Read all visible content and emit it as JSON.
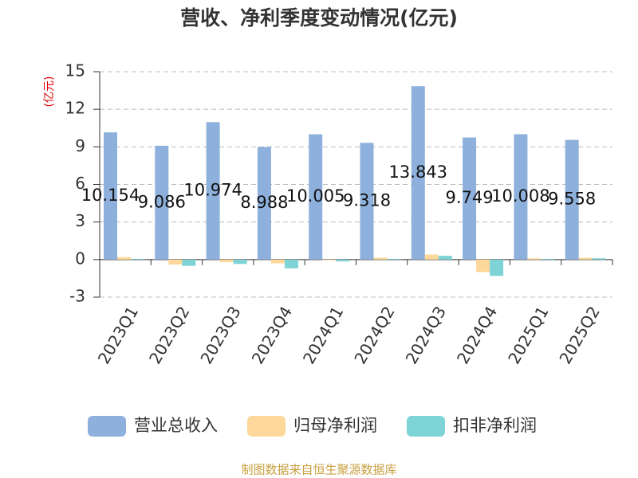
{
  "chart_data": {
    "type": "bar",
    "title": "营收、净利季度变动情况(亿元)",
    "y_unit": "(亿元)",
    "categories": [
      "2023Q1",
      "2023Q2",
      "2023Q3",
      "2023Q4",
      "2024Q1",
      "2024Q2",
      "2024Q3",
      "2024Q4",
      "2025Q1",
      "2025Q2"
    ],
    "series": [
      {
        "name": "营业总收入",
        "color": "#8eb0dc",
        "values": [
          10.154,
          9.086,
          10.974,
          8.988,
          10.005,
          9.318,
          13.843,
          9.749,
          10.008,
          9.558
        ],
        "labels": true
      },
      {
        "name": "归母净利润",
        "color": "#fdd89a",
        "values": [
          0.2,
          -0.4,
          -0.2,
          -0.3,
          -0.05,
          0.15,
          0.4,
          -1.0,
          0.1,
          0.15
        ]
      },
      {
        "name": "扣非净利润",
        "color": "#7dd3d6",
        "values": [
          0.05,
          -0.5,
          -0.35,
          -0.7,
          -0.15,
          0.05,
          0.3,
          -1.3,
          0.05,
          0.1
        ]
      }
    ],
    "ylim": [
      -3,
      15
    ],
    "yticks": [
      -3,
      0,
      3,
      6,
      9,
      12,
      15
    ],
    "grid": true,
    "legend": "bottom",
    "source": "制图数据来自恒生聚源数据库"
  }
}
